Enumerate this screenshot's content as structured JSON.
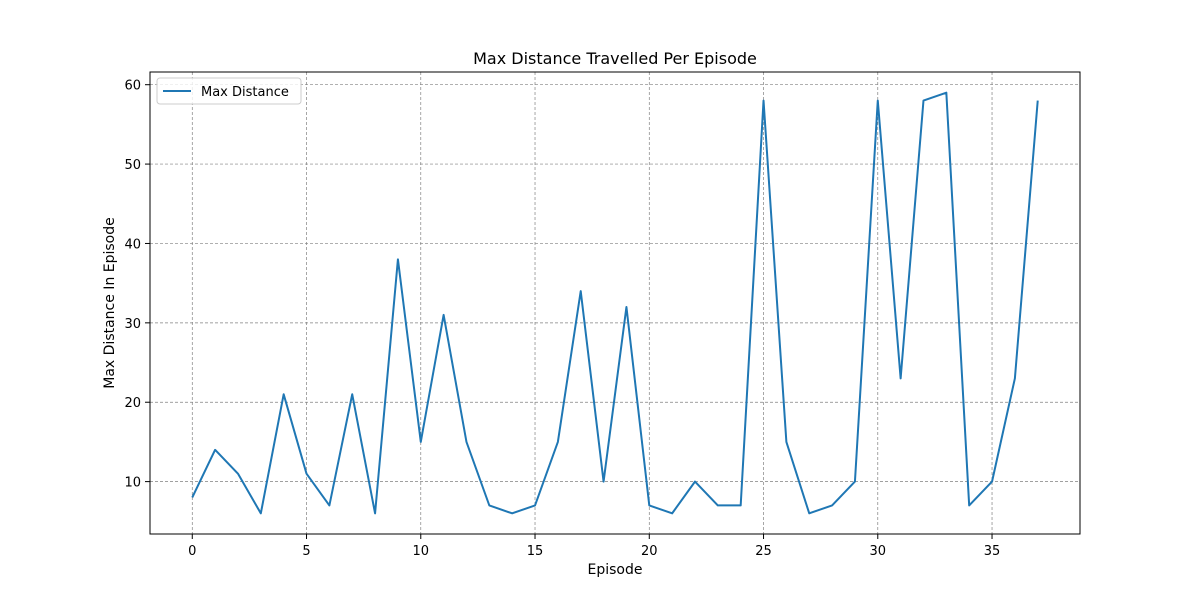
{
  "chart_data": {
    "type": "line",
    "title": "Max Distance Travelled Per Episode",
    "xlabel": "Episode",
    "ylabel": "Max Distance In Episode",
    "xlim": [
      -1.85,
      38.85
    ],
    "ylim": [
      3.4,
      61.6
    ],
    "xticks": [
      0,
      5,
      10,
      15,
      20,
      25,
      30,
      35
    ],
    "yticks": [
      10,
      20,
      30,
      40,
      50,
      60
    ],
    "grid": true,
    "legend_position": "top-left",
    "colors": {
      "series": "#1f77b4",
      "grid": "#808080",
      "axis": "#000000"
    },
    "series": [
      {
        "name": "Max Distance",
        "x": [
          0,
          1,
          2,
          3,
          4,
          5,
          6,
          7,
          8,
          9,
          10,
          11,
          12,
          13,
          14,
          15,
          16,
          17,
          18,
          19,
          20,
          21,
          22,
          23,
          24,
          25,
          26,
          27,
          28,
          29,
          30,
          31,
          32,
          33,
          34,
          35,
          36,
          37
        ],
        "y": [
          8,
          14,
          11,
          6,
          21,
          11,
          7,
          21,
          6,
          38,
          15,
          31,
          15,
          7,
          6,
          7,
          15,
          34,
          10,
          32,
          7,
          6,
          10,
          7,
          7,
          58,
          15,
          6,
          7,
          10,
          58,
          23,
          58,
          59,
          7,
          10,
          23,
          58
        ]
      }
    ]
  }
}
